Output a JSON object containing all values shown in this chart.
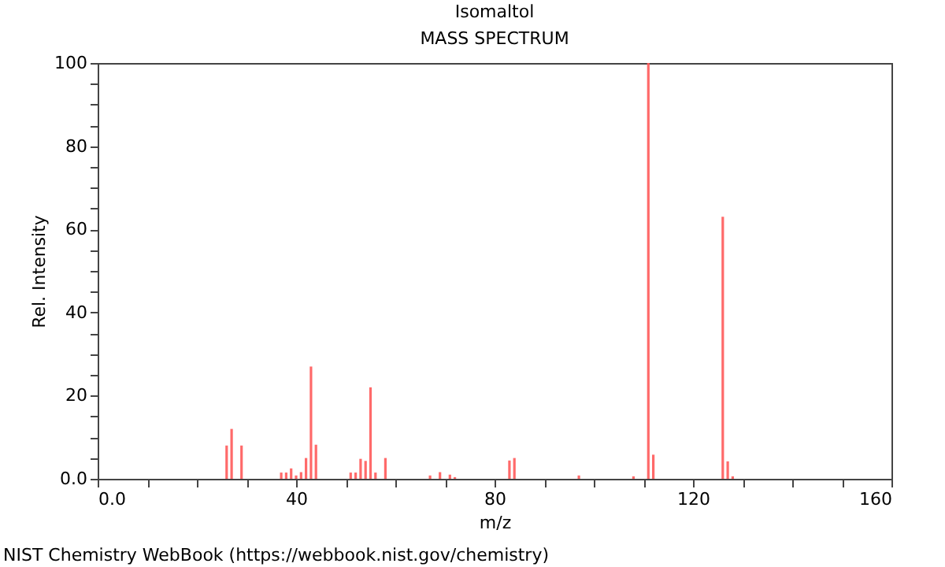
{
  "chart_data": {
    "type": "bar",
    "title": "Isomaltol",
    "subtitle": "MASS SPECTRUM",
    "xlabel": "m/z",
    "ylabel": "Rel. Intensity",
    "x": [
      26,
      27,
      29,
      37,
      38,
      39,
      40,
      41,
      42,
      43,
      44,
      51,
      52,
      53,
      54,
      55,
      56,
      58,
      67,
      69,
      71,
      72,
      83,
      84,
      97,
      108,
      111,
      112,
      126,
      127,
      128
    ],
    "series": [
      {
        "color": "#ff5a5a",
        "values": [
          8,
          12,
          8,
          1.5,
          1.5,
          2.5,
          0.8,
          1.6,
          5,
          27,
          8.2,
          1.5,
          1.5,
          4.8,
          4.3,
          22,
          1.5,
          5,
          0.8,
          1.6,
          1,
          0.4,
          4.4,
          5,
          0.8,
          0.6,
          100,
          5.8,
          63,
          4.2,
          0.6
        ]
      }
    ],
    "xlim": [
      0,
      160
    ],
    "ylim": [
      0,
      100
    ],
    "xticks": [
      {
        "value": 0,
        "label": "0.0"
      },
      {
        "value": 10,
        "label": null
      },
      {
        "value": 20,
        "label": null
      },
      {
        "value": 30,
        "label": null
      },
      40,
      {
        "value": 50,
        "label": null
      },
      {
        "value": 60,
        "label": null
      },
      {
        "value": 70,
        "label": null
      },
      80,
      {
        "value": 90,
        "label": null
      },
      {
        "value": 100,
        "label": null
      },
      {
        "value": 110,
        "label": null
      },
      120,
      {
        "value": 130,
        "label": null
      },
      {
        "value": 140,
        "label": null
      },
      {
        "value": 150,
        "label": null
      },
      160
    ],
    "yticks": [
      {
        "value": 0,
        "label": "0.0"
      },
      {
        "value": 5,
        "label": null
      },
      {
        "value": 10,
        "label": null
      },
      {
        "value": 15,
        "label": null
      },
      20,
      {
        "value": 25,
        "label": null
      },
      {
        "value": 30,
        "label": null
      },
      {
        "value": 35,
        "label": null
      },
      40,
      {
        "value": 45,
        "label": null
      },
      {
        "value": 50,
        "label": null
      },
      {
        "value": 55,
        "label": null
      },
      60,
      {
        "value": 65,
        "label": null
      },
      {
        "value": 70,
        "label": null
      },
      {
        "value": 75,
        "label": null
      },
      80,
      {
        "value": 85,
        "label": null
      },
      {
        "value": 90,
        "label": null
      },
      {
        "value": 95,
        "label": null
      },
      100
    ],
    "grid": false,
    "annotations": [
      "NIST Chemistry WebBook (https://webbook.nist.gov/chemistry)"
    ]
  }
}
